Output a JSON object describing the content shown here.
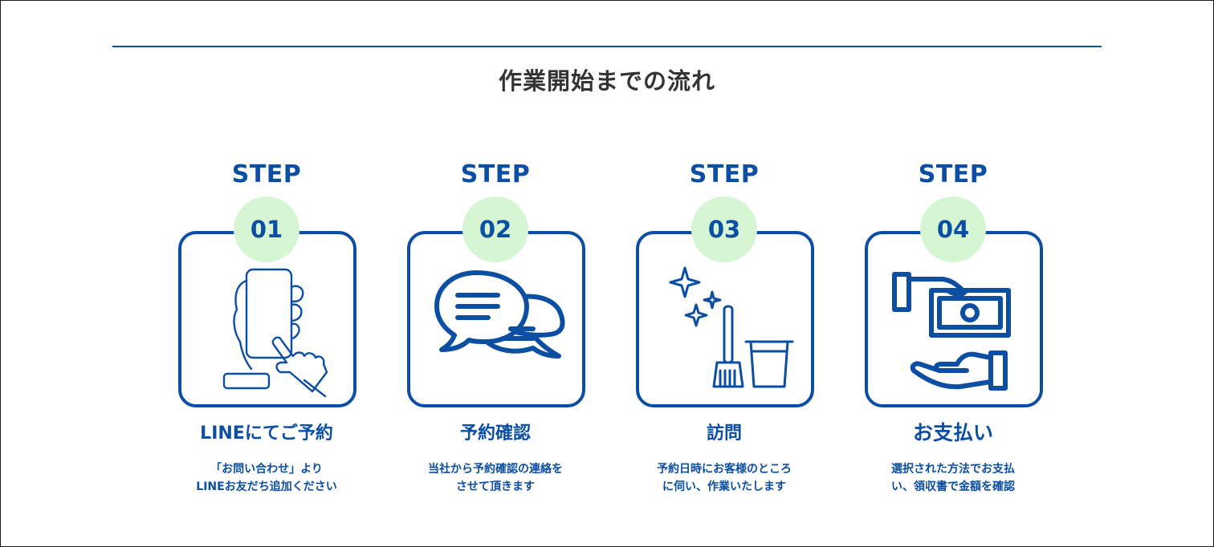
{
  "section": {
    "title": "作業開始までの流れ"
  },
  "steps": [
    {
      "label": "STEP",
      "number": "01",
      "title": "LINEにてご予約",
      "desc_line1": "「お問い合わせ」より",
      "desc_line2": "LINEお友だち追加ください",
      "icon": "smartphone-tap-icon"
    },
    {
      "label": "STEP",
      "number": "02",
      "title": "予約確認",
      "desc_line1": "当社から予約確認の連絡を",
      "desc_line2": "させて頂きます",
      "icon": "chat-bubbles-icon"
    },
    {
      "label": "STEP",
      "number": "03",
      "title": "訪問",
      "desc_line1": "予約日時にお客様のところ",
      "desc_line2": "に伺い、作業いたします",
      "icon": "cleaning-tools-icon"
    },
    {
      "label": "STEP",
      "number": "04",
      "title": "お支払い",
      "desc_line1": "選択された方法でお支払",
      "desc_line2": "い、領収書で金額を確認",
      "icon": "cash-payment-icon"
    }
  ],
  "colors": {
    "accent": "#0b4ea2",
    "badge_bg": "#d5f5d3",
    "title_text": "#333333"
  }
}
